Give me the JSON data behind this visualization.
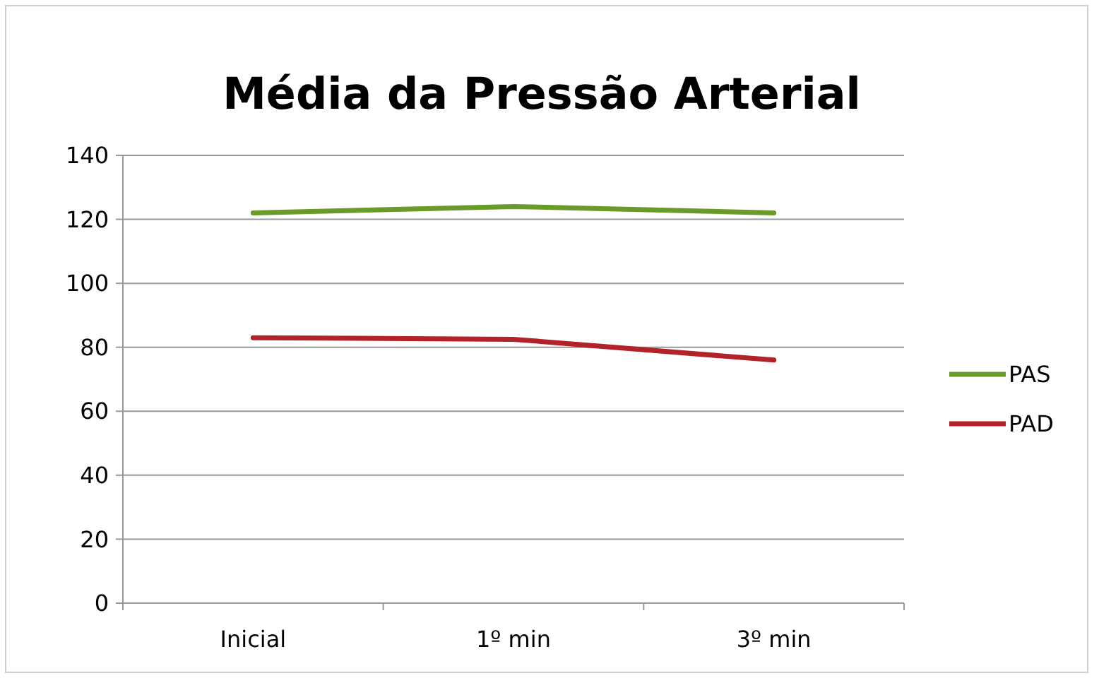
{
  "chart_data": {
    "type": "line",
    "title": "Média da Pressão Arterial",
    "categories": [
      "Inicial",
      "1º min",
      "3º min"
    ],
    "series": [
      {
        "name": "PAS",
        "color": "#6a9a2a",
        "values": [
          122,
          124,
          122
        ]
      },
      {
        "name": "PAD",
        "color": "#b22228",
        "values": [
          83,
          82.5,
          76
        ]
      }
    ],
    "ylim": [
      0,
      140
    ],
    "yticks": [
      0,
      20,
      40,
      60,
      80,
      100,
      120,
      140
    ],
    "grid": "y",
    "legend": "right",
    "marker": "none",
    "line_style": "solid"
  }
}
